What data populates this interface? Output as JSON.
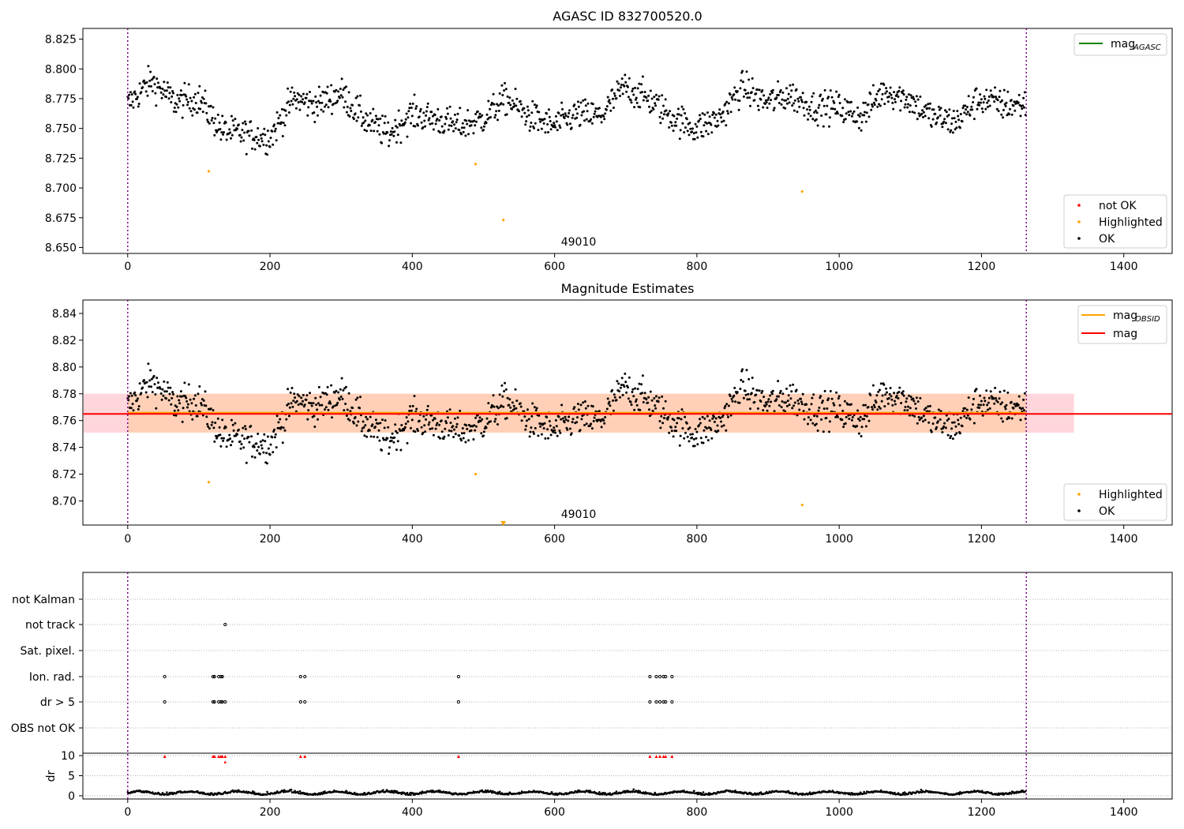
{
  "chart_data": [
    {
      "type": "scatter",
      "title": "AGASC ID 832700520.0",
      "xlim": [
        -63,
        1468
      ],
      "ylim": [
        8.645,
        8.834
      ],
      "yticks": [
        "8.650",
        "8.675",
        "8.700",
        "8.725",
        "8.750",
        "8.775",
        "8.800",
        "8.825"
      ],
      "xticks": [
        "0",
        "200",
        "400",
        "600",
        "800",
        "1000",
        "1200",
        "1400"
      ],
      "obsid_label": "49010",
      "obsid_label_x": 632,
      "vlines": [
        0,
        1263
      ],
      "legend_lines": [
        {
          "label": "mag",
          "sub": "AGASC",
          "color": "#008000"
        }
      ],
      "legend_points": [
        {
          "label": "not OK",
          "color": "#ff0000"
        },
        {
          "label": "Highlighted",
          "color": "#ffa500"
        },
        {
          "label": "OK",
          "color": "#000000"
        }
      ],
      "ok_series": {
        "n": 1263,
        "mean": 8.765,
        "segment_means": [
          8.77,
          8.79,
          8.772,
          8.775,
          8.748,
          8.745,
          8.742,
          8.775,
          8.77,
          8.78,
          8.758,
          8.745,
          8.762,
          8.758,
          8.752,
          8.758,
          8.775,
          8.76,
          8.752,
          8.762,
          8.76,
          8.785,
          8.775,
          8.76,
          8.75,
          8.758,
          8.785,
          8.772,
          8.778,
          8.768,
          8.768,
          8.76,
          8.782,
          8.775,
          8.76,
          8.755,
          8.775,
          8.77
        ]
      },
      "highlighted": [
        {
          "x": 114,
          "y": 8.714
        },
        {
          "x": 489,
          "y": 8.72
        },
        {
          "x": 528,
          "y": 8.673
        },
        {
          "x": 948,
          "y": 8.697
        }
      ]
    },
    {
      "type": "scatter",
      "title": "Magnitude Estimates",
      "xlim": [
        -63,
        1468
      ],
      "ylim": [
        8.682,
        8.85
      ],
      "yticks": [
        "8.70",
        "8.72",
        "8.74",
        "8.76",
        "8.78",
        "8.80",
        "8.82",
        "8.84"
      ],
      "xticks": [
        "0",
        "200",
        "400",
        "600",
        "800",
        "1000",
        "1200",
        "1400"
      ],
      "obsid_label": "49010",
      "obsid_label_x": 632,
      "vlines": [
        0,
        1263
      ],
      "mag_line": 8.765,
      "band": [
        8.751,
        8.78
      ],
      "band_x_end": 1330,
      "legend_lines": [
        {
          "label": "mag",
          "sub": "OBSID",
          "color": "#ffa500"
        },
        {
          "label": "mag",
          "sub": "",
          "color": "#ff0000"
        }
      ],
      "legend_points": [
        {
          "label": "Highlighted",
          "color": "#ffa500"
        },
        {
          "label": "OK",
          "color": "#000000"
        }
      ],
      "highlighted": [
        {
          "x": 114,
          "y": 8.714
        },
        {
          "x": 489,
          "y": 8.72
        },
        {
          "x": 948,
          "y": 8.697
        }
      ],
      "below_range_marker_x": 528
    },
    {
      "type": "scatter",
      "title": "",
      "xlim": [
        -63,
        1468
      ],
      "flag_labels": [
        "not Kalman",
        "not track",
        "Sat. pixel.",
        "Ion. rad.",
        "dr > 5",
        "OBS not OK"
      ],
      "flag_points": {
        "not track": [
          137
        ],
        "Ion. rad.": [
          52,
          120,
          122,
          128,
          131,
          133,
          243,
          249,
          465,
          734,
          743,
          748,
          753,
          756,
          765
        ],
        "dr > 5": [
          52,
          120,
          122,
          128,
          131,
          133,
          137,
          243,
          249,
          465,
          734,
          743,
          748,
          753,
          756,
          765
        ]
      },
      "dr_label": "dr",
      "dr_yticks": [
        "0",
        "5",
        "10"
      ],
      "dr_ylim": [
        -0.8,
        10.6
      ],
      "dr_clipped_x": [
        52,
        120,
        122,
        128,
        131,
        133,
        137,
        243,
        249,
        465,
        734,
        743,
        748,
        753,
        756,
        765
      ],
      "dr_outlier": {
        "x": 137,
        "y": 8.3
      },
      "xticks": [
        "0",
        "200",
        "400",
        "600",
        "800",
        "1000",
        "1200",
        "1400"
      ],
      "vlines": [
        0,
        1263
      ]
    }
  ]
}
